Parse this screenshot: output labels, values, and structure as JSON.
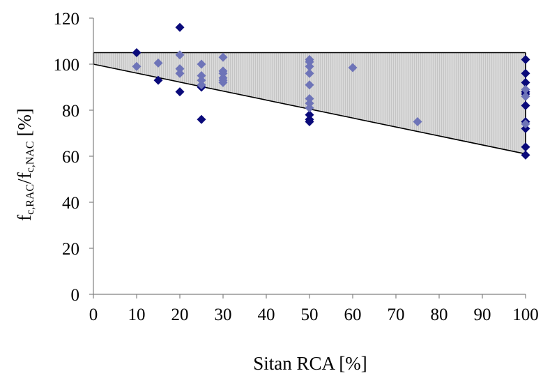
{
  "chart_data": {
    "type": "scatter",
    "title": "",
    "xlabel": "Sitan RCA [%]",
    "ylabel_parts": {
      "f1": "f",
      "sub1": "c,RAC",
      "slash": "/",
      "f2": "f",
      "sub2": "c,NAC",
      "unit": " [%]"
    },
    "xlim": [
      0,
      100
    ],
    "ylim": [
      0,
      120
    ],
    "xticks": [
      "0",
      "10",
      "20",
      "30",
      "40",
      "50",
      "60",
      "70",
      "80",
      "90",
      "100"
    ],
    "yticks": [
      "0",
      "20",
      "40",
      "60",
      "80",
      "100",
      "120"
    ],
    "grid": false,
    "band": {
      "upper": [
        [
          0,
          105
        ],
        [
          100,
          105
        ]
      ],
      "lower": [
        [
          0,
          100
        ],
        [
          100,
          61
        ]
      ],
      "fill_color": "#d9d9d9",
      "hatch_color": "#c4c4c4",
      "edge_color": "#000000"
    },
    "colors": {
      "dark": "#0a0a7a",
      "light": "#6e74b8"
    },
    "series": [
      {
        "style": "dark",
        "points": [
          [
            10,
            105
          ],
          [
            15,
            93
          ],
          [
            20,
            116
          ],
          [
            20,
            88
          ],
          [
            25,
            90
          ],
          [
            25,
            76
          ],
          [
            50,
            78
          ],
          [
            50,
            76
          ],
          [
            50,
            75
          ],
          [
            100,
            102
          ],
          [
            100,
            96
          ],
          [
            100,
            92
          ],
          [
            100,
            88
          ],
          [
            100,
            87
          ],
          [
            100,
            82
          ],
          [
            100,
            75
          ],
          [
            100,
            72
          ],
          [
            100,
            64
          ],
          [
            100,
            60.5
          ]
        ]
      },
      {
        "style": "light",
        "points": [
          [
            10,
            99
          ],
          [
            15,
            100.5
          ],
          [
            20,
            104
          ],
          [
            20,
            98
          ],
          [
            20,
            96
          ],
          [
            25,
            100
          ],
          [
            25,
            95
          ],
          [
            25,
            93
          ],
          [
            25,
            91
          ],
          [
            30,
            103
          ],
          [
            30,
            97
          ],
          [
            30,
            96
          ],
          [
            30,
            94
          ],
          [
            30,
            93
          ],
          [
            30,
            92
          ],
          [
            50,
            102
          ],
          [
            50,
            101
          ],
          [
            50,
            99
          ],
          [
            50,
            96
          ],
          [
            50,
            91
          ],
          [
            50,
            85
          ],
          [
            50,
            83
          ],
          [
            50,
            81
          ],
          [
            60,
            98.5
          ],
          [
            75,
            75
          ],
          [
            100,
            89
          ],
          [
            100,
            86
          ],
          [
            100,
            74
          ]
        ]
      }
    ]
  }
}
